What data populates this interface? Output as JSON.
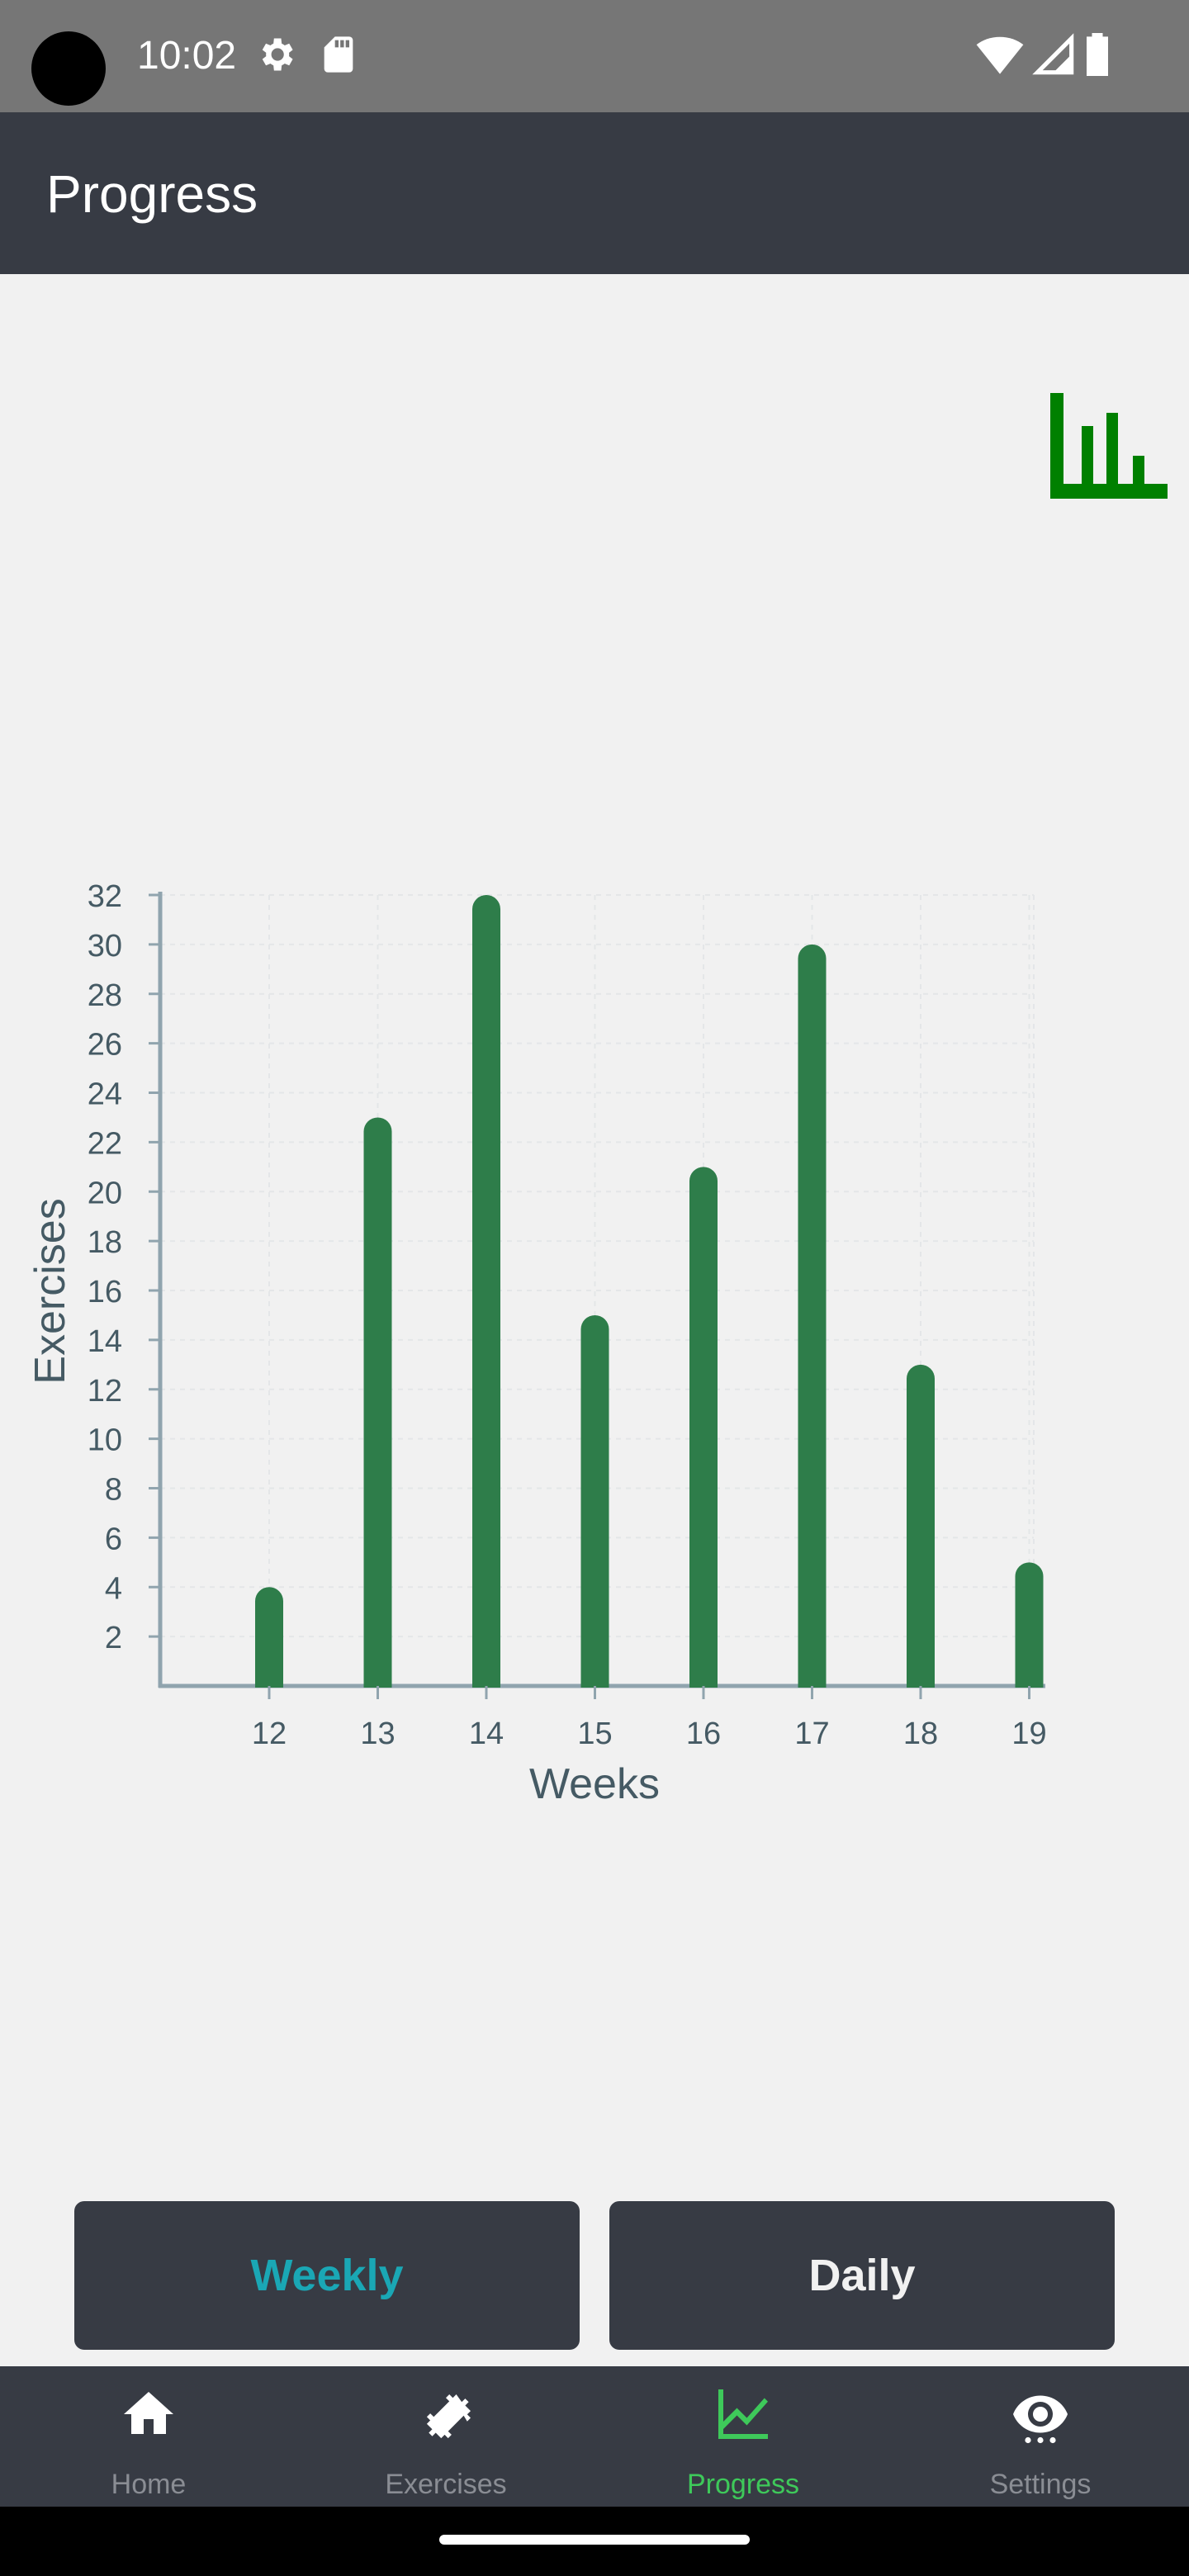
{
  "status_bar": {
    "time": "10:02",
    "icons": [
      "settings-gear-icon",
      "sd-card-icon",
      "wifi-icon",
      "signal-icon",
      "battery-icon"
    ]
  },
  "app_bar": {
    "title": "Progress"
  },
  "chart_toggle": {
    "icon": "bar-chart-icon",
    "color": "#008000"
  },
  "chart_data": {
    "type": "bar",
    "categories": [
      "12",
      "13",
      "14",
      "15",
      "16",
      "17",
      "18",
      "19"
    ],
    "values": [
      4,
      23,
      32,
      15,
      21,
      30,
      13,
      5
    ],
    "xlabel": "Weeks",
    "ylabel": "Exercises",
    "ylim": [
      0,
      32
    ],
    "yticks": [
      2,
      4,
      6,
      8,
      10,
      12,
      14,
      16,
      18,
      20,
      22,
      24,
      26,
      28,
      30,
      32
    ],
    "bar_color": "#2e7d4a",
    "grid": true
  },
  "buttons": {
    "weekly": "Weekly",
    "daily": "Daily",
    "selected": "weekly",
    "selected_color": "#1aa7b5"
  },
  "bottom_nav": {
    "items": [
      {
        "label": "Home",
        "icon": "home-icon"
      },
      {
        "label": "Exercises",
        "icon": "dumbbell-icon"
      },
      {
        "label": "Progress",
        "icon": "line-chart-icon"
      },
      {
        "label": "Settings",
        "icon": "eye-icon"
      }
    ],
    "active": "Progress",
    "active_color": "#3ec95a"
  }
}
